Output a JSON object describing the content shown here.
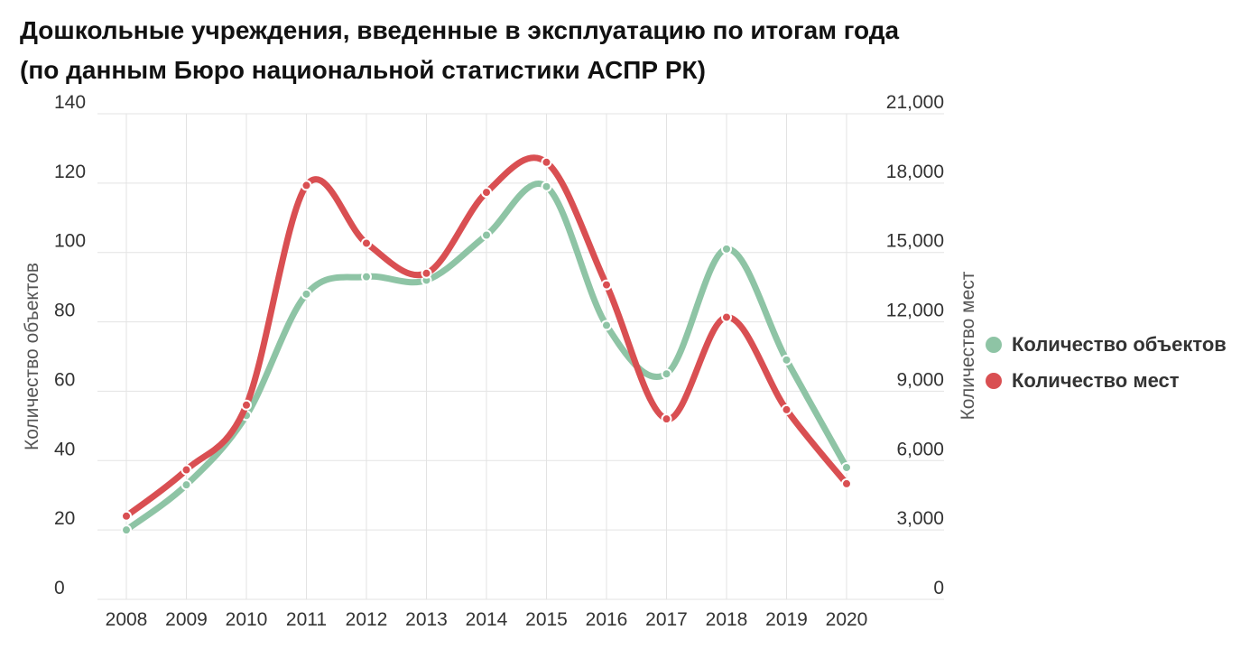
{
  "title_line1": "Дошкольные учреждения, введенные в эксплуатацию по итогам года",
  "title_line2": "(по данным Бюро национальной статистики АСПР РК)",
  "chart_data": {
    "type": "line",
    "categories": [
      "2008",
      "2009",
      "2010",
      "2011",
      "2012",
      "2013",
      "2014",
      "2015",
      "2016",
      "2017",
      "2018",
      "2019",
      "2020"
    ],
    "series": [
      {
        "name": "Количество объектов",
        "axis": "left",
        "color": "#8ec4a5",
        "values": [
          20,
          33,
          53,
          88,
          93,
          92,
          105,
          119,
          79,
          65,
          101,
          69,
          38
        ]
      },
      {
        "name": "Количество мест",
        "axis": "right",
        "color": "#d94f52",
        "values": [
          3600,
          5600,
          8400,
          17900,
          15400,
          14100,
          17600,
          18900,
          13600,
          7800,
          12200,
          8200,
          5000
        ]
      }
    ],
    "ylabel_left": "Количество объектов",
    "ylabel_right": "Количество мест",
    "y_left_ticks": [
      "0",
      "20",
      "40",
      "60",
      "80",
      "100",
      "120",
      "140"
    ],
    "y_right_ticks": [
      "0",
      "3,000",
      "6,000",
      "9,000",
      "12,000",
      "15,000",
      "18,000",
      "21,000"
    ],
    "ylim_left": [
      0,
      140
    ],
    "ylim_right": [
      0,
      21000
    ],
    "grid": true,
    "legend_position": "right"
  }
}
